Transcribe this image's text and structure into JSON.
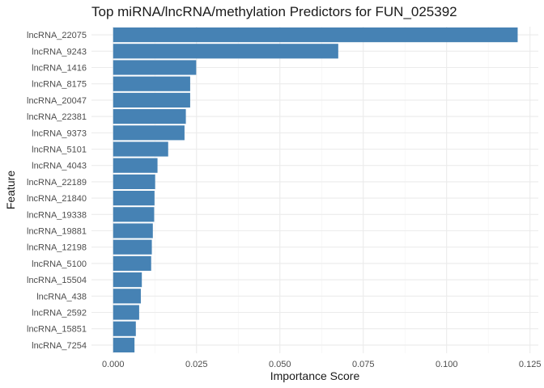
{
  "chart_data": {
    "type": "bar",
    "orientation": "horizontal",
    "title": "Top miRNA/lncRNA/methylation Predictors for FUN_025392",
    "xlabel": "Importance Score",
    "ylabel": "Feature",
    "xlim": [
      -0.0065,
      0.1275
    ],
    "xticks": [
      0.0,
      0.025,
      0.05,
      0.075,
      0.1,
      0.125
    ],
    "xtick_labels": [
      "0.000",
      "0.025",
      "0.050",
      "0.075",
      "0.100",
      "0.125"
    ],
    "grid": true,
    "bar_color": "#4682b4",
    "categories": [
      "lncRNA_22075",
      "lncRNA_9243",
      "lncRNA_1416",
      "lncRNA_8175",
      "lncRNA_20047",
      "lncRNA_22381",
      "lncRNA_9373",
      "lncRNA_5101",
      "lncRNA_4043",
      "lncRNA_22189",
      "lncRNA_21840",
      "lncRNA_19338",
      "lncRNA_19881",
      "lncRNA_12198",
      "lncRNA_5100",
      "lncRNA_15504",
      "lncRNA_438",
      "lncRNA_2592",
      "lncRNA_15851",
      "lncRNA_7254"
    ],
    "values": [
      0.1213,
      0.0675,
      0.0249,
      0.0231,
      0.0231,
      0.0218,
      0.0214,
      0.0165,
      0.0133,
      0.0126,
      0.0124,
      0.0123,
      0.0119,
      0.0116,
      0.0114,
      0.0086,
      0.0083,
      0.0078,
      0.0068,
      0.0064
    ]
  }
}
